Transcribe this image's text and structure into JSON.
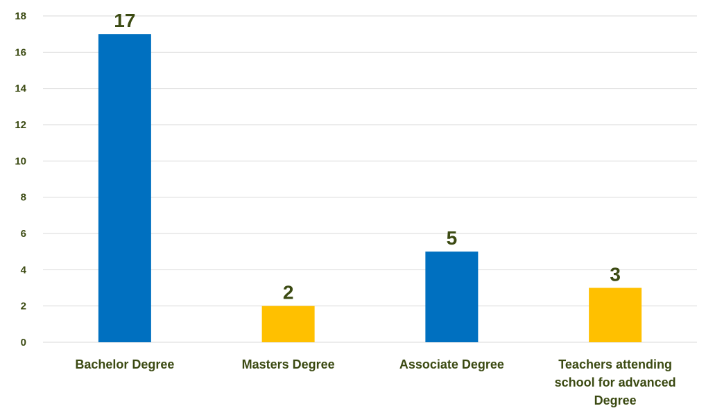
{
  "chart_data": {
    "type": "bar",
    "categories": [
      [
        "Bachelor Degree"
      ],
      [
        "Masters Degree"
      ],
      [
        "Associate Degree"
      ],
      [
        "Teachers attending",
        "school for advanced",
        "Degree"
      ]
    ],
    "values": [
      17,
      2,
      5,
      3
    ],
    "bar_colors": [
      "#0070c0",
      "#ffc000",
      "#0070c0",
      "#ffc000"
    ],
    "data_labels": [
      "17",
      "2",
      "5",
      "3"
    ],
    "ylim": [
      0,
      18
    ],
    "yticks": [
      0,
      2,
      4,
      6,
      8,
      10,
      12,
      14,
      16,
      18
    ],
    "grid": true,
    "legend": "none",
    "title": "",
    "xlabel": "",
    "ylabel": "",
    "colors": {
      "text": "#3b4a12",
      "grid": "#d9d9d9"
    }
  }
}
